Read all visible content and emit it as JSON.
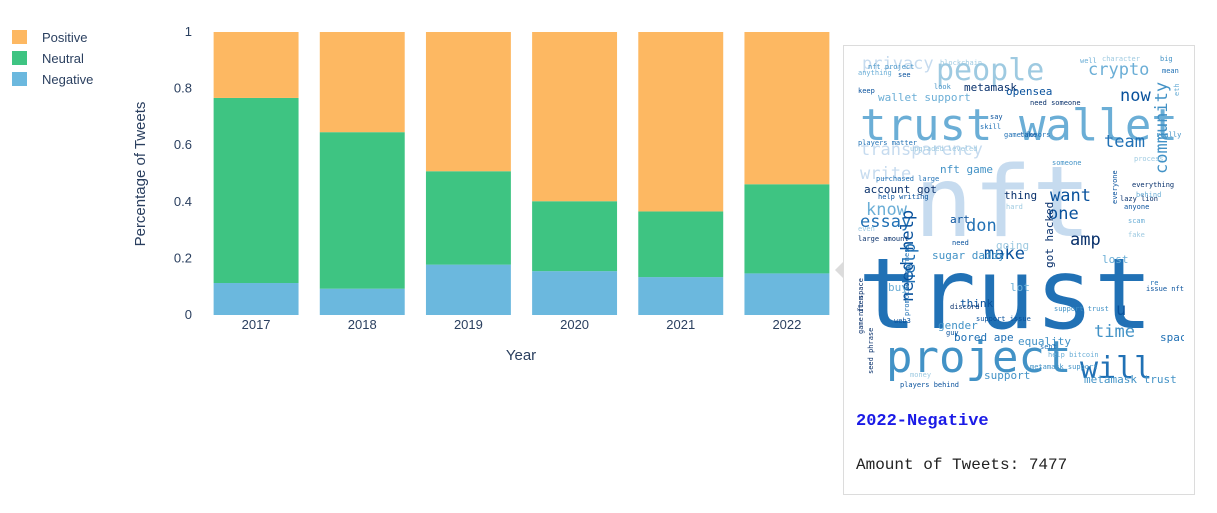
{
  "chart_data": {
    "type": "bar",
    "stacked": true,
    "categories": [
      "2017",
      "2018",
      "2019",
      "2020",
      "2021",
      "2022"
    ],
    "series": [
      {
        "name": "Negative",
        "color": "#6bb8de",
        "values": [
          0.113,
          0.093,
          0.178,
          0.155,
          0.134,
          0.147
        ]
      },
      {
        "name": "Neutral",
        "color": "#3ec482",
        "values": [
          0.654,
          0.553,
          0.33,
          0.247,
          0.232,
          0.315
        ]
      },
      {
        "name": "Positive",
        "color": "#fdb862",
        "values": [
          0.233,
          0.354,
          0.492,
          0.598,
          0.634,
          0.538
        ]
      }
    ],
    "legend_order": [
      "Positive",
      "Neutral",
      "Negative"
    ],
    "legend_placement": "top-left",
    "xlabel": "Year",
    "ylabel": "Percentage of Tweets",
    "ylim": [
      0,
      1
    ],
    "yticks": [
      "0",
      "0.2",
      "0.4",
      "0.6",
      "0.8",
      "1"
    ],
    "ytick_values": [
      0,
      0.2,
      0.4,
      0.6,
      0.8,
      1
    ],
    "grid": false
  },
  "hover": {
    "title": "2022-Negative",
    "amount_text": "Amount of Tweets: 7477",
    "wordcloud_colors": [
      "#c6dbef",
      "#9ecae1",
      "#6baed6",
      "#4292c6",
      "#2171b5",
      "#08519c",
      "#08306b"
    ],
    "words": [
      {
        "text": "nft",
        "size": 6
      },
      {
        "text": "trust",
        "size": 6
      },
      {
        "text": "trust wallet",
        "size": 5
      },
      {
        "text": "project",
        "size": 5
      },
      {
        "text": "people",
        "size": 4
      },
      {
        "text": "crypto",
        "size": 3
      },
      {
        "text": "will",
        "size": 4
      },
      {
        "text": "transparency",
        "size": 3
      },
      {
        "text": "community",
        "size": 3
      },
      {
        "text": "team",
        "size": 3
      },
      {
        "text": "one",
        "size": 3
      },
      {
        "text": "essay",
        "size": 3
      },
      {
        "text": "know",
        "size": 3
      },
      {
        "text": "want",
        "size": 3
      },
      {
        "text": "don",
        "size": 3
      },
      {
        "text": "amp",
        "size": 3
      },
      {
        "text": "make",
        "size": 3
      },
      {
        "text": "help",
        "size": 3
      },
      {
        "text": "need help",
        "size": 3
      },
      {
        "text": "write",
        "size": 3
      },
      {
        "text": "time",
        "size": 3
      },
      {
        "text": "now",
        "size": 3
      },
      {
        "text": "privacy",
        "size": 3
      },
      {
        "text": "u",
        "size": 3
      },
      {
        "text": "support",
        "size": 2
      },
      {
        "text": "space",
        "size": 2
      },
      {
        "text": "lost",
        "size": 2
      },
      {
        "text": "nft game",
        "size": 2
      },
      {
        "text": "metamask",
        "size": 2
      },
      {
        "text": "wallet support",
        "size": 2
      },
      {
        "text": "opensea",
        "size": 2
      },
      {
        "text": "account got",
        "size": 2
      },
      {
        "text": "sugar daddy",
        "size": 2
      },
      {
        "text": "bored ape",
        "size": 2
      },
      {
        "text": "metamask trust",
        "size": 2
      },
      {
        "text": "equality",
        "size": 2
      },
      {
        "text": "got hacked",
        "size": 2
      },
      {
        "text": "think",
        "size": 2
      },
      {
        "text": "buy",
        "size": 2
      },
      {
        "text": "art",
        "size": 2
      },
      {
        "text": "thing",
        "size": 2
      },
      {
        "text": "lot",
        "size": 2
      },
      {
        "text": "gender",
        "size": 2
      },
      {
        "text": "going",
        "size": 2
      },
      {
        "text": "see",
        "size": 1
      },
      {
        "text": "take",
        "size": 1
      },
      {
        "text": "need",
        "size": 1
      },
      {
        "text": "discord",
        "size": 1
      },
      {
        "text": "guy",
        "size": 1
      },
      {
        "text": "scam",
        "size": 1
      },
      {
        "text": "anyone",
        "size": 1
      },
      {
        "text": "fake",
        "size": 1
      },
      {
        "text": "say",
        "size": 1
      },
      {
        "text": "look",
        "size": 1
      },
      {
        "text": "skill",
        "size": 1
      },
      {
        "text": "keep",
        "size": 1
      },
      {
        "text": "money",
        "size": 1
      },
      {
        "text": "web3",
        "size": 1
      },
      {
        "text": "sent",
        "size": 1
      },
      {
        "text": "hard",
        "size": 1
      },
      {
        "text": "game item",
        "size": 1
      },
      {
        "text": "seed phrase",
        "size": 1
      },
      {
        "text": "players behind",
        "size": 1
      },
      {
        "text": "large amount",
        "size": 1
      },
      {
        "text": "purchased large",
        "size": 1
      },
      {
        "text": "help writing",
        "size": 1
      },
      {
        "text": "someone",
        "size": 1
      },
      {
        "text": "need someone",
        "size": 1
      },
      {
        "text": "game favors",
        "size": 1
      },
      {
        "text": "blockchain",
        "size": 1
      },
      {
        "text": "big",
        "size": 1
      },
      {
        "text": "mean",
        "size": 1
      },
      {
        "text": "eth",
        "size": 1
      },
      {
        "text": "really",
        "size": 1
      },
      {
        "text": "process",
        "size": 1
      },
      {
        "text": "behind",
        "size": 1
      },
      {
        "text": "everything",
        "size": 1
      },
      {
        "text": "lazy lion",
        "size": 1
      },
      {
        "text": "everyone",
        "size": 1
      },
      {
        "text": "even",
        "size": 1
      },
      {
        "text": "issue nft",
        "size": 1
      },
      {
        "text": "re",
        "size": 1
      },
      {
        "text": "support issue",
        "size": 1
      },
      {
        "text": "promotes fairness",
        "size": 1
      },
      {
        "text": "nft space",
        "size": 1
      },
      {
        "text": "metamask support",
        "size": 1
      },
      {
        "text": "help bitcoin",
        "size": 1
      },
      {
        "text": "support trust",
        "size": 1
      },
      {
        "text": "well",
        "size": 1
      },
      {
        "text": "character",
        "size": 1
      },
      {
        "text": "players matter",
        "size": 1
      },
      {
        "text": "upgraded leveled",
        "size": 1
      },
      {
        "text": "anything",
        "size": 1
      },
      {
        "text": "nft project",
        "size": 1
      }
    ]
  }
}
